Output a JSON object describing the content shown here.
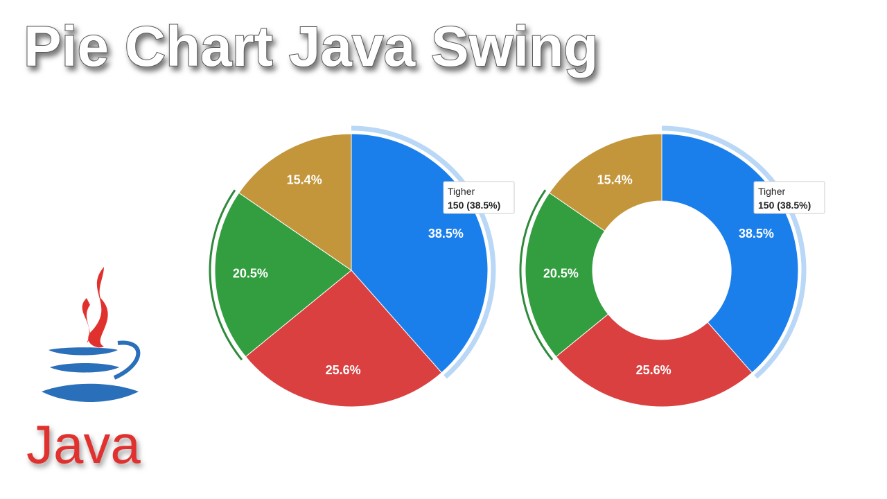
{
  "header": {
    "title": "Pie Chart Java Swing"
  },
  "logo": {
    "text": "Java"
  },
  "chart_data": [
    {
      "type": "pie",
      "values": [
        38.5,
        25.6,
        20.5,
        15.4
      ],
      "value_labels": [
        "38.5%",
        "25.6%",
        "20.5%",
        "15.4%"
      ],
      "colors": [
        "#1b7feb",
        "#db4041",
        "#339e40",
        "#c4963c"
      ],
      "tooltip": {
        "title": "Tigher",
        "text": "150 (38.5%)"
      }
    },
    {
      "type": "donut",
      "values": [
        38.5,
        25.6,
        20.5,
        15.4
      ],
      "value_labels": [
        "38.5%",
        "25.6%",
        "20.5%",
        "15.4%"
      ],
      "colors": [
        "#1b7feb",
        "#db4041",
        "#339e40",
        "#c4963c"
      ],
      "tooltip": {
        "title": "Tigher",
        "text": "150 (38.5%)"
      }
    }
  ]
}
